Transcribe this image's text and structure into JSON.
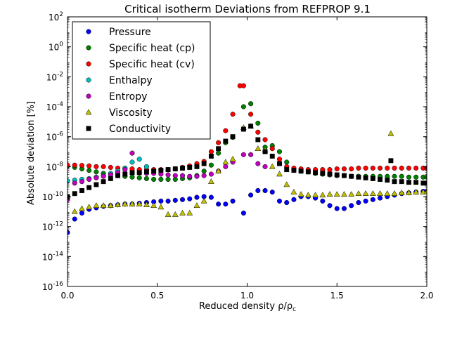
{
  "chart_data": {
    "type": "scatter",
    "title": "Critical isotherm Deviations from REFPROP 9.1",
    "xlabel": "Reduced density ρ/ρ",
    "xlabel_subscript": "c",
    "ylabel": "Absolute deviation [%]",
    "xlim": [
      0.0,
      2.0
    ],
    "ylim_log10": [
      -16,
      2
    ],
    "y_scale": "log",
    "x_ticks": [
      {
        "value": 0.0,
        "label": "0.0"
      },
      {
        "value": 0.5,
        "label": "0.5"
      },
      {
        "value": 1.0,
        "label": "1.0"
      },
      {
        "value": 1.5,
        "label": "1.5"
      },
      {
        "value": 2.0,
        "label": "2.0"
      }
    ],
    "y_ticks": [
      {
        "exp": 2,
        "base": "10",
        "sup": "2"
      },
      {
        "exp": 0,
        "base": "10",
        "sup": "0"
      },
      {
        "exp": -2,
        "base": "10",
        "sup": "-2"
      },
      {
        "exp": -4,
        "base": "10",
        "sup": "-4"
      },
      {
        "exp": -6,
        "base": "10",
        "sup": "-6"
      },
      {
        "exp": -8,
        "base": "10",
        "sup": "-8"
      },
      {
        "exp": -10,
        "base": "10",
        "sup": "-10"
      },
      {
        "exp": -12,
        "base": "10",
        "sup": "-12"
      },
      {
        "exp": -14,
        "base": "10",
        "sup": "-14"
      },
      {
        "exp": -16,
        "base": "10",
        "sup": "-16"
      }
    ],
    "grid": false,
    "legend_position": "top-left",
    "series": [
      {
        "name": "Pressure",
        "marker": "circle",
        "color": "#0000ff",
        "x": [
          0,
          0.04,
          0.08,
          0.12,
          0.16,
          0.2,
          0.24,
          0.28,
          0.32,
          0.36,
          0.4,
          0.44,
          0.48,
          0.52,
          0.56,
          0.6,
          0.64,
          0.68,
          0.72,
          0.76,
          0.8,
          0.84,
          0.88,
          0.92,
          0.98,
          1.02,
          1.06,
          1.1,
          1.14,
          1.18,
          1.22,
          1.26,
          1.3,
          1.34,
          1.38,
          1.42,
          1.46,
          1.5,
          1.54,
          1.58,
          1.62,
          1.66,
          1.7,
          1.74,
          1.78,
          1.82,
          1.86,
          1.9,
          1.94,
          1.98,
          2.0
        ],
        "log10y": [
          -12.4,
          -11.5,
          -11.1,
          -10.85,
          -10.75,
          -10.65,
          -10.6,
          -10.55,
          -10.5,
          -10.5,
          -10.45,
          -10.4,
          -10.35,
          -10.3,
          -10.3,
          -10.25,
          -10.2,
          -10.15,
          -10.05,
          -10.0,
          -10.05,
          -10.5,
          -10.5,
          -10.3,
          -11.1,
          -9.9,
          -9.6,
          -9.6,
          -9.7,
          -10.3,
          -10.4,
          -10.2,
          -10.0,
          -10.0,
          -10.1,
          -10.3,
          -10.6,
          -10.8,
          -10.8,
          -10.6,
          -10.4,
          -10.3,
          -10.2,
          -10.1,
          -10.0,
          -9.9,
          -9.8,
          -9.75,
          -9.7,
          -9.65,
          -9.65
        ]
      },
      {
        "name": "Specific heat (cp)",
        "marker": "circle",
        "color": "#008000",
        "x": [
          0,
          0.04,
          0.08,
          0.12,
          0.16,
          0.2,
          0.24,
          0.28,
          0.32,
          0.36,
          0.4,
          0.44,
          0.48,
          0.52,
          0.56,
          0.6,
          0.64,
          0.68,
          0.72,
          0.76,
          0.8,
          0.84,
          0.88,
          0.92,
          0.98,
          1.02,
          1.06,
          1.1,
          1.14,
          1.18,
          1.22,
          1.26,
          1.3,
          1.34,
          1.38,
          1.42,
          1.46,
          1.5,
          1.54,
          1.58,
          1.62,
          1.66,
          1.7,
          1.74,
          1.78,
          1.82,
          1.86,
          1.9,
          1.94,
          1.98,
          2.0
        ],
        "log10y": [
          -7.95,
          -8.05,
          -8.15,
          -8.25,
          -8.35,
          -8.45,
          -8.5,
          -8.6,
          -8.65,
          -8.7,
          -8.75,
          -8.8,
          -8.85,
          -8.85,
          -8.85,
          -8.85,
          -8.8,
          -8.75,
          -8.6,
          -8.3,
          -7.9,
          -7.1,
          -6.4,
          -6.05,
          -4.0,
          -3.8,
          -5.1,
          -6.7,
          -6.6,
          -7.0,
          -7.7,
          -8.2,
          -8.3,
          -8.35,
          -8.45,
          -8.5,
          -8.55,
          -8.6,
          -8.6,
          -8.65,
          -8.65,
          -8.65,
          -8.65,
          -8.65,
          -8.65,
          -8.65,
          -8.65,
          -8.7,
          -8.7,
          -8.7,
          -8.7
        ]
      },
      {
        "name": "Specific heat (cv)",
        "marker": "circle",
        "color": "#ff0000",
        "x": [
          0,
          0.04,
          0.08,
          0.12,
          0.16,
          0.2,
          0.24,
          0.28,
          0.32,
          0.36,
          0.4,
          0.44,
          0.48,
          0.52,
          0.56,
          0.6,
          0.64,
          0.68,
          0.72,
          0.76,
          0.8,
          0.84,
          0.88,
          0.92,
          0.96,
          0.98,
          1.02,
          1.06,
          1.1,
          1.14,
          1.18,
          1.22,
          1.26,
          1.3,
          1.34,
          1.38,
          1.42,
          1.46,
          1.5,
          1.54,
          1.58,
          1.62,
          1.66,
          1.7,
          1.74,
          1.78,
          1.82,
          1.86,
          1.9,
          1.94,
          1.98,
          2.0
        ],
        "log10y": [
          -7.9,
          -7.9,
          -7.92,
          -7.95,
          -8.0,
          -8.0,
          -8.05,
          -8.1,
          -8.1,
          -8.15,
          -8.2,
          -8.2,
          -8.2,
          -8.2,
          -8.2,
          -8.15,
          -8.05,
          -7.95,
          -7.8,
          -7.65,
          -7.0,
          -6.4,
          -5.6,
          -4.5,
          -2.6,
          -2.6,
          -4.5,
          -5.7,
          -6.2,
          -6.8,
          -7.5,
          -8.0,
          -8.1,
          -8.15,
          -8.2,
          -8.2,
          -8.2,
          -8.2,
          -8.15,
          -8.15,
          -8.15,
          -8.1,
          -8.1,
          -8.1,
          -8.1,
          -8.1,
          -8.1,
          -8.1,
          -8.1,
          -8.1,
          -8.1,
          -8.1
        ]
      },
      {
        "name": "Enthalpy",
        "marker": "circle",
        "color": "#00bfbf",
        "x": [
          0,
          0.04,
          0.08,
          0.12,
          0.16,
          0.2,
          0.24,
          0.28,
          0.32,
          0.36,
          0.4,
          0.44
        ],
        "log10y": [
          -8.95,
          -8.9,
          -8.85,
          -8.8,
          -8.7,
          -8.6,
          -8.45,
          -8.3,
          -8.1,
          -7.7,
          -7.5,
          -8.0
        ]
      },
      {
        "name": "Entropy",
        "marker": "circle",
        "color": "#bf00bf",
        "x": [
          0,
          0.04,
          0.08,
          0.12,
          0.16,
          0.2,
          0.24,
          0.28,
          0.32,
          0.36,
          0.4,
          0.44,
          0.48,
          0.52,
          0.56,
          0.6,
          0.64,
          0.68,
          0.72,
          0.76,
          0.8,
          0.84,
          0.88,
          0.92,
          0.98,
          1.02,
          1.06,
          1.1
        ],
        "log10y": [
          -10.2,
          -9.1,
          -9.0,
          -8.85,
          -8.75,
          -8.65,
          -8.55,
          -8.4,
          -8.2,
          -7.1,
          -8.4,
          -8.45,
          -8.45,
          -8.5,
          -8.55,
          -8.6,
          -8.6,
          -8.65,
          -8.65,
          -8.6,
          -8.5,
          -8.3,
          -8.0,
          -7.7,
          -7.2,
          -7.2,
          -7.8,
          -8.0
        ]
      },
      {
        "name": "Viscosity",
        "marker": "triangle",
        "color": "#bfbf00",
        "x": [
          0.04,
          0.08,
          0.12,
          0.16,
          0.2,
          0.24,
          0.28,
          0.32,
          0.36,
          0.4,
          0.44,
          0.48,
          0.52,
          0.56,
          0.6,
          0.64,
          0.68,
          0.72,
          0.76,
          0.8,
          0.84,
          0.88,
          0.92,
          0.98,
          1.02,
          1.06,
          1.1,
          1.14,
          1.18,
          1.22,
          1.26,
          1.3,
          1.34,
          1.38,
          1.42,
          1.46,
          1.5,
          1.54,
          1.58,
          1.62,
          1.66,
          1.7,
          1.74,
          1.78,
          1.8,
          1.82,
          1.86,
          1.9,
          1.94,
          1.98,
          2.0
        ],
        "log10y": [
          -11.0,
          -10.8,
          -10.7,
          -10.6,
          -10.6,
          -10.6,
          -10.55,
          -10.5,
          -10.5,
          -10.5,
          -10.55,
          -10.6,
          -10.7,
          -11.2,
          -11.2,
          -11.1,
          -11.1,
          -10.6,
          -10.3,
          -9.0,
          -8.3,
          -7.7,
          -7.5,
          -5.4,
          -5.3,
          -6.8,
          -6.9,
          -8.0,
          -8.5,
          -9.2,
          -9.7,
          -9.85,
          -9.9,
          -9.9,
          -9.9,
          -9.85,
          -9.85,
          -9.85,
          -9.85,
          -9.8,
          -9.8,
          -9.8,
          -9.8,
          -9.8,
          -5.8,
          -9.8,
          -9.75,
          -9.75,
          -9.7,
          -9.7,
          -9.7
        ]
      },
      {
        "name": "Conductivity",
        "marker": "square",
        "color": "#000000",
        "x": [
          0,
          0.04,
          0.08,
          0.12,
          0.16,
          0.2,
          0.24,
          0.28,
          0.32,
          0.36,
          0.4,
          0.44,
          0.48,
          0.52,
          0.56,
          0.6,
          0.64,
          0.68,
          0.72,
          0.76,
          0.8,
          0.84,
          0.88,
          0.92,
          0.98,
          1.02,
          1.06,
          1.1,
          1.14,
          1.18,
          1.22,
          1.26,
          1.3,
          1.34,
          1.38,
          1.42,
          1.46,
          1.5,
          1.54,
          1.58,
          1.62,
          1.66,
          1.7,
          1.74,
          1.78,
          1.8,
          1.82,
          1.86,
          1.9,
          1.94,
          1.98,
          2.0
        ],
        "log10y": [
          -10.0,
          -9.8,
          -9.6,
          -9.4,
          -9.2,
          -9.0,
          -8.8,
          -8.6,
          -8.5,
          -8.4,
          -8.4,
          -8.35,
          -8.3,
          -8.25,
          -8.2,
          -8.15,
          -8.1,
          -8.05,
          -8.0,
          -7.8,
          -7.3,
          -6.8,
          -6.3,
          -6.0,
          -5.5,
          -5.3,
          -6.2,
          -7.0,
          -7.3,
          -7.8,
          -8.2,
          -8.25,
          -8.3,
          -8.35,
          -8.4,
          -8.45,
          -8.5,
          -8.55,
          -8.6,
          -8.65,
          -8.7,
          -8.75,
          -8.8,
          -8.85,
          -8.9,
          -7.6,
          -9.0,
          -9.0,
          -9.05,
          -9.05,
          -9.1,
          -9.1
        ]
      }
    ]
  }
}
